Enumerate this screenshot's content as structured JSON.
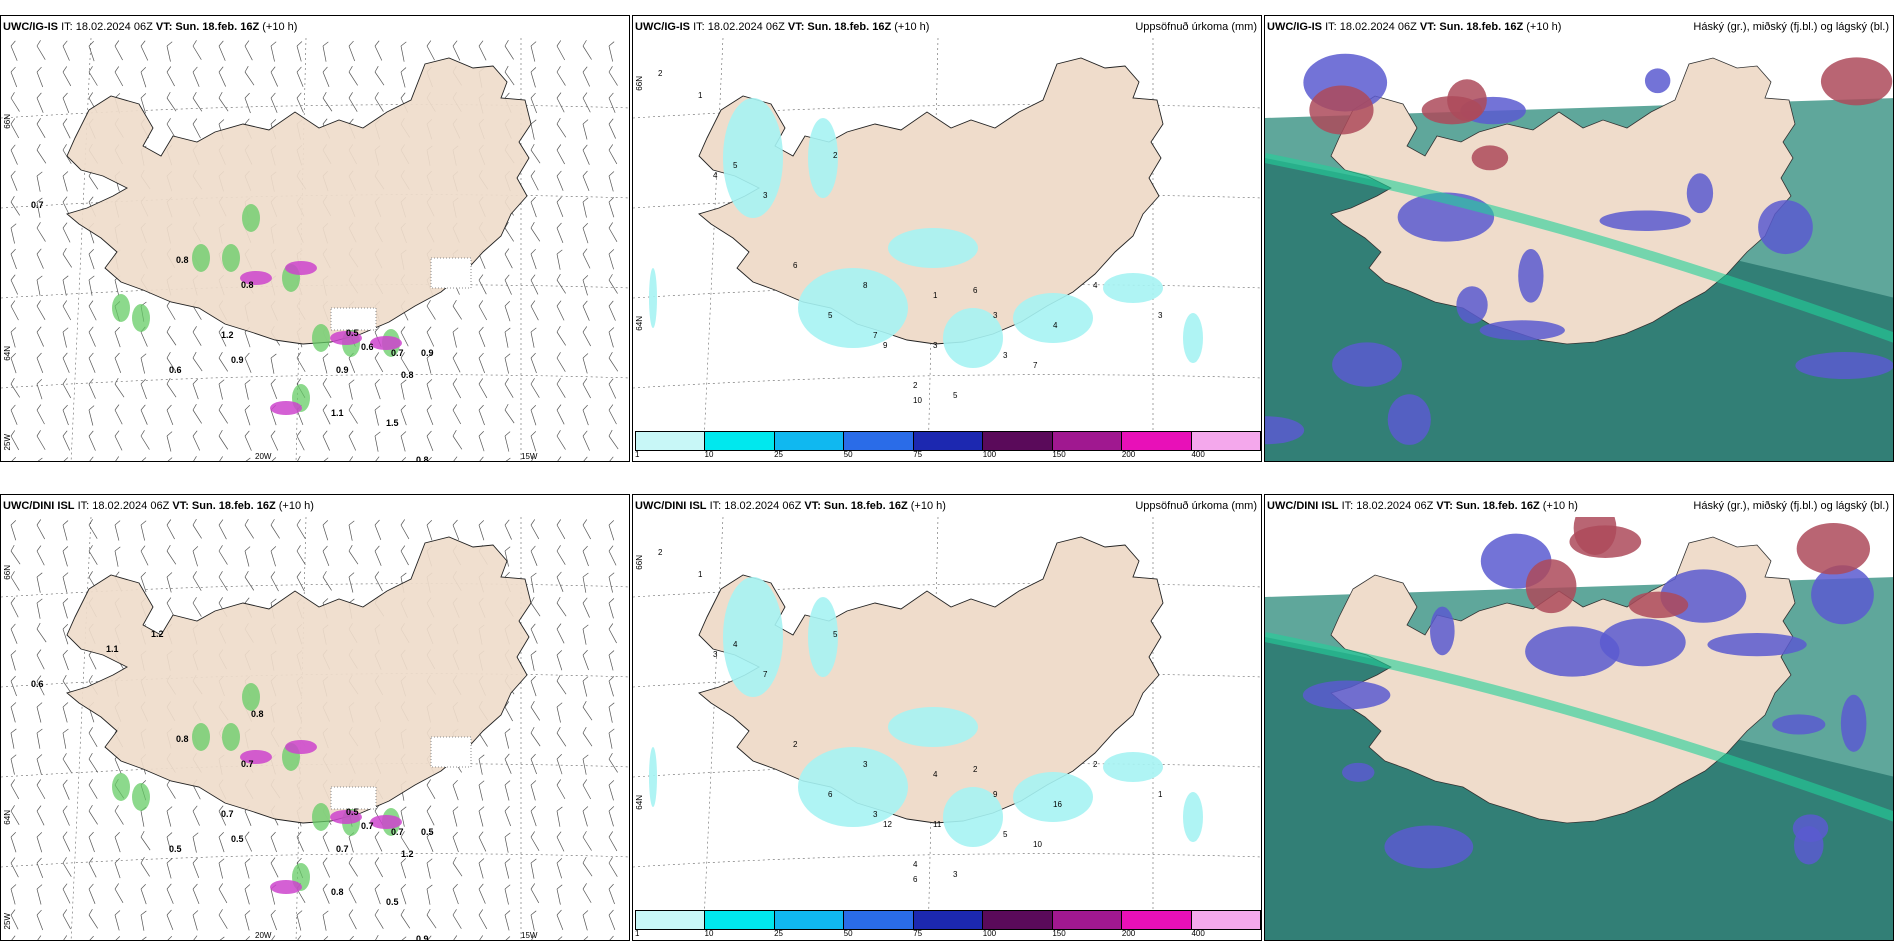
{
  "panels": {
    "igis_wind": {
      "model": "UWC/IG-IS",
      "it": "IT: 18.02.2024 06Z",
      "vt": "VT: Sun. 18.feb. 16Z",
      "lead": "(+10 h)",
      "right": "",
      "values": [
        "0.7",
        "0.8",
        "0.8",
        "1.2",
        "0.9",
        "0.6",
        "0.5",
        "0.6",
        "0.9",
        "0.7",
        "0.9",
        "0.8",
        "1.1",
        "1.5",
        "0.8"
      ],
      "axes": {
        "lat1": "66N",
        "lat2": "64N",
        "lon1": "25W",
        "lon2": "20W",
        "lon3": "15W"
      }
    },
    "igis_precip": {
      "model": "UWC/IG-IS",
      "it": "IT: 18.02.2024 06Z",
      "vt": "VT: Sun. 18.feb. 16Z",
      "lead": "(+10 h)",
      "right": "Uppsöfnuð úrkoma (mm)",
      "values": [
        "2",
        "1",
        "4",
        "5",
        "3",
        "2",
        "6",
        "5",
        "7",
        "1",
        "6",
        "3",
        "8",
        "9",
        "4",
        "7",
        "3",
        "2",
        "10",
        "5",
        "3",
        "4",
        "3",
        "2"
      ],
      "axes": {
        "lat1": "66N",
        "lat2": "64N"
      }
    },
    "igis_cloud": {
      "model": "UWC/IG-IS",
      "it": "IT: 18.02.2024 06Z",
      "vt": "VT: Sun. 18.feb. 16Z",
      "lead": "(+10 h)",
      "right": "Háský (gr.), miðský (fj.bl.) og lágský (bl.)"
    },
    "dini_wind": {
      "model": "UWC/DINI ISL",
      "it": "IT: 18.02.2024 06Z",
      "vt": "VT: Sun. 18.feb. 16Z",
      "lead": "(+10 h)",
      "right": "",
      "values": [
        "0.6",
        "0.8",
        "0.7",
        "0.7",
        "0.5",
        "0.5",
        "0.5",
        "0.7",
        "0.7",
        "0.7",
        "0.5",
        "1.2",
        "0.8",
        "0.5",
        "0.9",
        "1.1",
        "1.2",
        "0.8"
      ],
      "axes": {
        "lat1": "66N",
        "lat2": "64N",
        "lon1": "25W",
        "lon2": "20W",
        "lon3": "15W"
      }
    },
    "dini_precip": {
      "model": "UWC/DINI ISL",
      "it": "IT: 18.02.2024 06Z",
      "vt": "VT: Sun. 18.feb. 16Z",
      "lead": "(+10 h)",
      "right": "Uppsöfnuð úrkoma (mm)",
      "values": [
        "2",
        "1",
        "3",
        "4",
        "7",
        "5",
        "2",
        "6",
        "3",
        "4",
        "2",
        "9",
        "3",
        "12",
        "16",
        "10",
        "11",
        "4",
        "6",
        "3",
        "5",
        "2",
        "1",
        "3"
      ],
      "axes": {
        "lat1": "66N",
        "lat2": "64N"
      }
    },
    "dini_cloud": {
      "model": "UWC/DINI ISL",
      "it": "IT: 18.02.2024 06Z",
      "vt": "VT: Sun. 18.feb. 16Z",
      "lead": "(+10 h)",
      "right": "Háský (gr.), miðský (fj.bl.) og lágský (bl.)"
    }
  },
  "colorbar": {
    "ticks": [
      "1",
      "10",
      "25",
      "50",
      "75",
      "100",
      "150",
      "200",
      "400"
    ],
    "colors": [
      "#c8f7f7",
      "#00e8ee",
      "#10b8f0",
      "#2a6ce8",
      "#1c28b0",
      "#5a0a5a",
      "#a01890",
      "#e810b8",
      "#f4a8ec"
    ]
  },
  "colors": {
    "land": "#efdccb",
    "precip": "#a6f3f3",
    "snow": "#cc44cc",
    "green": "#66cc66",
    "cloudHigh": "#ad4a5a",
    "cloudMid": "#5a5ad0",
    "cloudLow": "#2a8a7a"
  }
}
